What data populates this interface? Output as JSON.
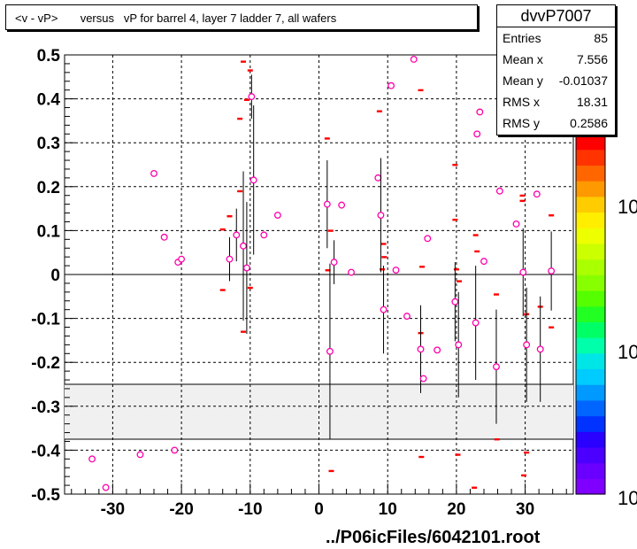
{
  "chart_data": {
    "type": "scatter",
    "title": "<v - vP>       versus   vP for barrel 4, layer 7 ladder 7, all wafers",
    "xlim": [
      -37,
      37
    ],
    "ylim": [
      -0.5,
      0.5
    ],
    "x_ticks": [
      -30,
      -20,
      -10,
      0,
      10,
      20,
      30
    ],
    "y_ticks": [
      -0.5,
      -0.4,
      -0.3,
      -0.2,
      -0.1,
      0,
      0.1,
      0.2,
      0.3,
      0.4,
      0.5
    ],
    "grid": true,
    "shaded_band": [
      -0.375,
      -0.25
    ],
    "points": [
      {
        "x": -33,
        "y": -0.42
      },
      {
        "x": -31,
        "y": -0.485
      },
      {
        "x": -26,
        "y": -0.41
      },
      {
        "x": -24,
        "y": 0.23
      },
      {
        "x": -22.5,
        "y": 0.085
      },
      {
        "x": -21,
        "y": -0.4
      },
      {
        "x": -20.5,
        "y": 0.028
      },
      {
        "x": -20,
        "y": 0.035
      },
      {
        "x": -13,
        "y": 0.035,
        "err": 0.05
      },
      {
        "x": -12,
        "y": 0.09,
        "err": 0.06
      },
      {
        "x": -11,
        "y": 0.065,
        "err": 0.17
      },
      {
        "x": -10.5,
        "y": 0.015,
        "err": 0.15
      },
      {
        "x": -9.8,
        "y": 0.405,
        "err": 0.05
      },
      {
        "x": -9.5,
        "y": 0.215,
        "err": 0.17
      },
      {
        "x": -8,
        "y": 0.09
      },
      {
        "x": -6,
        "y": 0.135
      },
      {
        "x": 1.2,
        "y": 0.16,
        "err": 0.1
      },
      {
        "x": 1.6,
        "y": -0.175,
        "err": 0.2
      },
      {
        "x": 2.2,
        "y": 0.028,
        "err": 0.05
      },
      {
        "x": 3.3,
        "y": 0.158
      },
      {
        "x": 4.7,
        "y": 0.005
      },
      {
        "x": 8.6,
        "y": 0.22
      },
      {
        "x": 9,
        "y": 0.135,
        "err": 0.13
      },
      {
        "x": 9.4,
        "y": -0.08,
        "err": 0.1
      },
      {
        "x": 10.5,
        "y": 0.43
      },
      {
        "x": 11.2,
        "y": 0.01
      },
      {
        "x": 12.8,
        "y": -0.095
      },
      {
        "x": 13.8,
        "y": 0.49
      },
      {
        "x": 14.8,
        "y": -0.17,
        "err": 0.1
      },
      {
        "x": 15.2,
        "y": -0.237
      },
      {
        "x": 15.8,
        "y": 0.082
      },
      {
        "x": 17.2,
        "y": -0.172
      },
      {
        "x": 19.8,
        "y": -0.062,
        "err": 0.09
      },
      {
        "x": 20.3,
        "y": -0.16,
        "err": 0.12
      },
      {
        "x": 22.8,
        "y": -0.11,
        "err": 0.13
      },
      {
        "x": 23,
        "y": 0.32
      },
      {
        "x": 23.4,
        "y": 0.37
      },
      {
        "x": 24,
        "y": 0.03
      },
      {
        "x": 25.8,
        "y": -0.21,
        "err": 0.13
      },
      {
        "x": 26.3,
        "y": 0.19
      },
      {
        "x": 28.7,
        "y": 0.115
      },
      {
        "x": 29.7,
        "y": 0.005,
        "err": 0.1
      },
      {
        "x": 30.2,
        "y": -0.16,
        "err": 0.13
      },
      {
        "x": 31.7,
        "y": 0.183
      },
      {
        "x": 32.2,
        "y": -0.17,
        "err": 0.12
      },
      {
        "x": 33.8,
        "y": 0.008,
        "err": 0.09
      }
    ],
    "markers": [
      {
        "x": -14,
        "y": -0.035
      },
      {
        "x": -14,
        "y": 0.103
      },
      {
        "x": -13,
        "y": 0.133
      },
      {
        "x": -11.5,
        "y": 0.19
      },
      {
        "x": -11.5,
        "y": 0.355
      },
      {
        "x": -11,
        "y": 0.485
      },
      {
        "x": -11,
        "y": -0.13
      },
      {
        "x": -10.5,
        "y": 0.398
      },
      {
        "x": -10,
        "y": 0.465
      },
      {
        "x": -10,
        "y": -0.03
      },
      {
        "x": 1.2,
        "y": 0.31
      },
      {
        "x": 1.3,
        "y": 0.01
      },
      {
        "x": 1.7,
        "y": 0.1
      },
      {
        "x": 1.8,
        "y": -0.447
      },
      {
        "x": 8.8,
        "y": 0.372
      },
      {
        "x": 9.2,
        "y": 0.012
      },
      {
        "x": 9.4,
        "y": 0.07
      },
      {
        "x": 9.5,
        "y": 0.04
      },
      {
        "x": 14.8,
        "y": -0.133
      },
      {
        "x": 14.8,
        "y": 0.42
      },
      {
        "x": 14.9,
        "y": -0.415
      },
      {
        "x": 15,
        "y": 0.018
      },
      {
        "x": 19.8,
        "y": 0.25
      },
      {
        "x": 19.8,
        "y": 0.125
      },
      {
        "x": 20,
        "y": 0.012
      },
      {
        "x": 20.2,
        "y": -0.41
      },
      {
        "x": 20.4,
        "y": -0.015
      },
      {
        "x": 22.6,
        "y": -0.485
      },
      {
        "x": 22.8,
        "y": 0.09
      },
      {
        "x": 23,
        "y": 0.053
      },
      {
        "x": 25.8,
        "y": -0.045
      },
      {
        "x": 25.9,
        "y": -0.375
      },
      {
        "x": 29.6,
        "y": 0.18
      },
      {
        "x": 29.6,
        "y": 0.168
      },
      {
        "x": 29.8,
        "y": -0.457
      },
      {
        "x": 30.2,
        "y": -0.405
      },
      {
        "x": 30.2,
        "y": -0.09
      },
      {
        "x": 32.2,
        "y": -0.073
      },
      {
        "x": 33.8,
        "y": 0.135
      },
      {
        "x": 33.8,
        "y": -0.12
      }
    ],
    "colorbar": {
      "colors": [
        "#7f00ff",
        "#6a00ff",
        "#4b00ff",
        "#2a00ff",
        "#0033ff",
        "#0066ff",
        "#0099ff",
        "#00ccff",
        "#00e5e5",
        "#00ffaa",
        "#00ff66",
        "#22ff22",
        "#55ff00",
        "#88ff00",
        "#aaff00",
        "#ccff00",
        "#eeff00",
        "#ffee00",
        "#ffcc00",
        "#ff9900",
        "#ff6600",
        "#ff3300",
        "#ff0000"
      ],
      "labels": [
        "10",
        "10",
        "10"
      ]
    },
    "colors": {
      "marker": "#ff00aa",
      "short_marker": "#ff0000",
      "shaded_band": "#f0f0f0"
    }
  },
  "stats": {
    "name": "dvvP7007",
    "rows": [
      {
        "label": "Entries",
        "value": "85"
      },
      {
        "label": "Mean x",
        "value": "7.556"
      },
      {
        "label": "Mean y",
        "value": "-0.01037"
      },
      {
        "label": "RMS x",
        "value": "18.31"
      },
      {
        "label": "RMS y",
        "value": "0.2586"
      }
    ]
  },
  "footer": "../P06icFiles/6042101.root"
}
